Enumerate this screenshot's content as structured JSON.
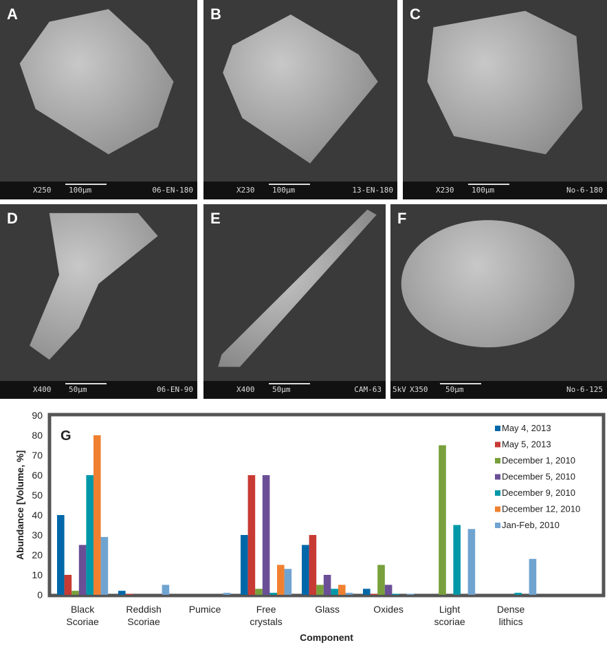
{
  "panels": [
    {
      "letter": "A",
      "mag": "X250",
      "scale": "100µm",
      "sample": "06-EN-180",
      "kv": ""
    },
    {
      "letter": "B",
      "mag": "X230",
      "scale": "100µm",
      "sample": "13-EN-180",
      "kv": ""
    },
    {
      "letter": "C",
      "mag": "X230",
      "scale": "100µm",
      "sample": "No-6-180",
      "kv": ""
    },
    {
      "letter": "D",
      "mag": "X400",
      "scale": "50µm",
      "sample": "06-EN-90",
      "kv": ""
    },
    {
      "letter": "E",
      "mag": "X400",
      "scale": "50µm",
      "sample": "CAM-63",
      "kv": ""
    },
    {
      "letter": "F",
      "mag": "X350",
      "scale": "50µm",
      "sample": "No-6-125",
      "kv": "5kV"
    }
  ],
  "chart_data": {
    "type": "bar",
    "panel_label": "G",
    "xlabel": "Component",
    "ylabel": "Abundance [Volume, %]",
    "ylim": [
      0,
      90
    ],
    "yticks": [
      0,
      10,
      20,
      30,
      40,
      50,
      60,
      70,
      80,
      90
    ],
    "grid": false,
    "legend_position": "top-right",
    "categories": [
      [
        "Black",
        "Scoriae"
      ],
      [
        "Reddish",
        "Scoriae"
      ],
      [
        "Pumice",
        ""
      ],
      [
        "Free",
        "crystals"
      ],
      [
        "Glass",
        ""
      ],
      [
        "Oxides",
        ""
      ],
      [
        "Light",
        "scoriae"
      ],
      [
        "Dense",
        "lithics"
      ]
    ],
    "series": [
      {
        "name": "May 4, 2013",
        "color": "#0068a8",
        "values": [
          40,
          2,
          0,
          30,
          25,
          3,
          0,
          0
        ]
      },
      {
        "name": "May 5, 2013",
        "color": "#c83a34",
        "values": [
          10,
          0.5,
          0,
          60,
          30,
          0.5,
          0,
          0
        ]
      },
      {
        "name": "December 1, 2010",
        "color": "#78a03c",
        "values": [
          2,
          0,
          0,
          3,
          5,
          15,
          75,
          0
        ]
      },
      {
        "name": "December 5, 2010",
        "color": "#6a4f96",
        "values": [
          25,
          0,
          0,
          60,
          10,
          5,
          0,
          0
        ]
      },
      {
        "name": "December 9, 2010",
        "color": "#0098a8",
        "values": [
          60,
          0,
          0,
          1,
          3,
          0.5,
          35,
          1
        ]
      },
      {
        "name": "December 12, 2010",
        "color": "#f08030",
        "values": [
          80,
          0,
          0,
          15,
          5,
          0,
          0,
          0
        ]
      },
      {
        "name": "Jan-Feb, 2010",
        "color": "#70a4d0",
        "values": [
          29,
          5,
          1,
          13,
          1,
          0.5,
          33,
          18
        ]
      }
    ]
  }
}
